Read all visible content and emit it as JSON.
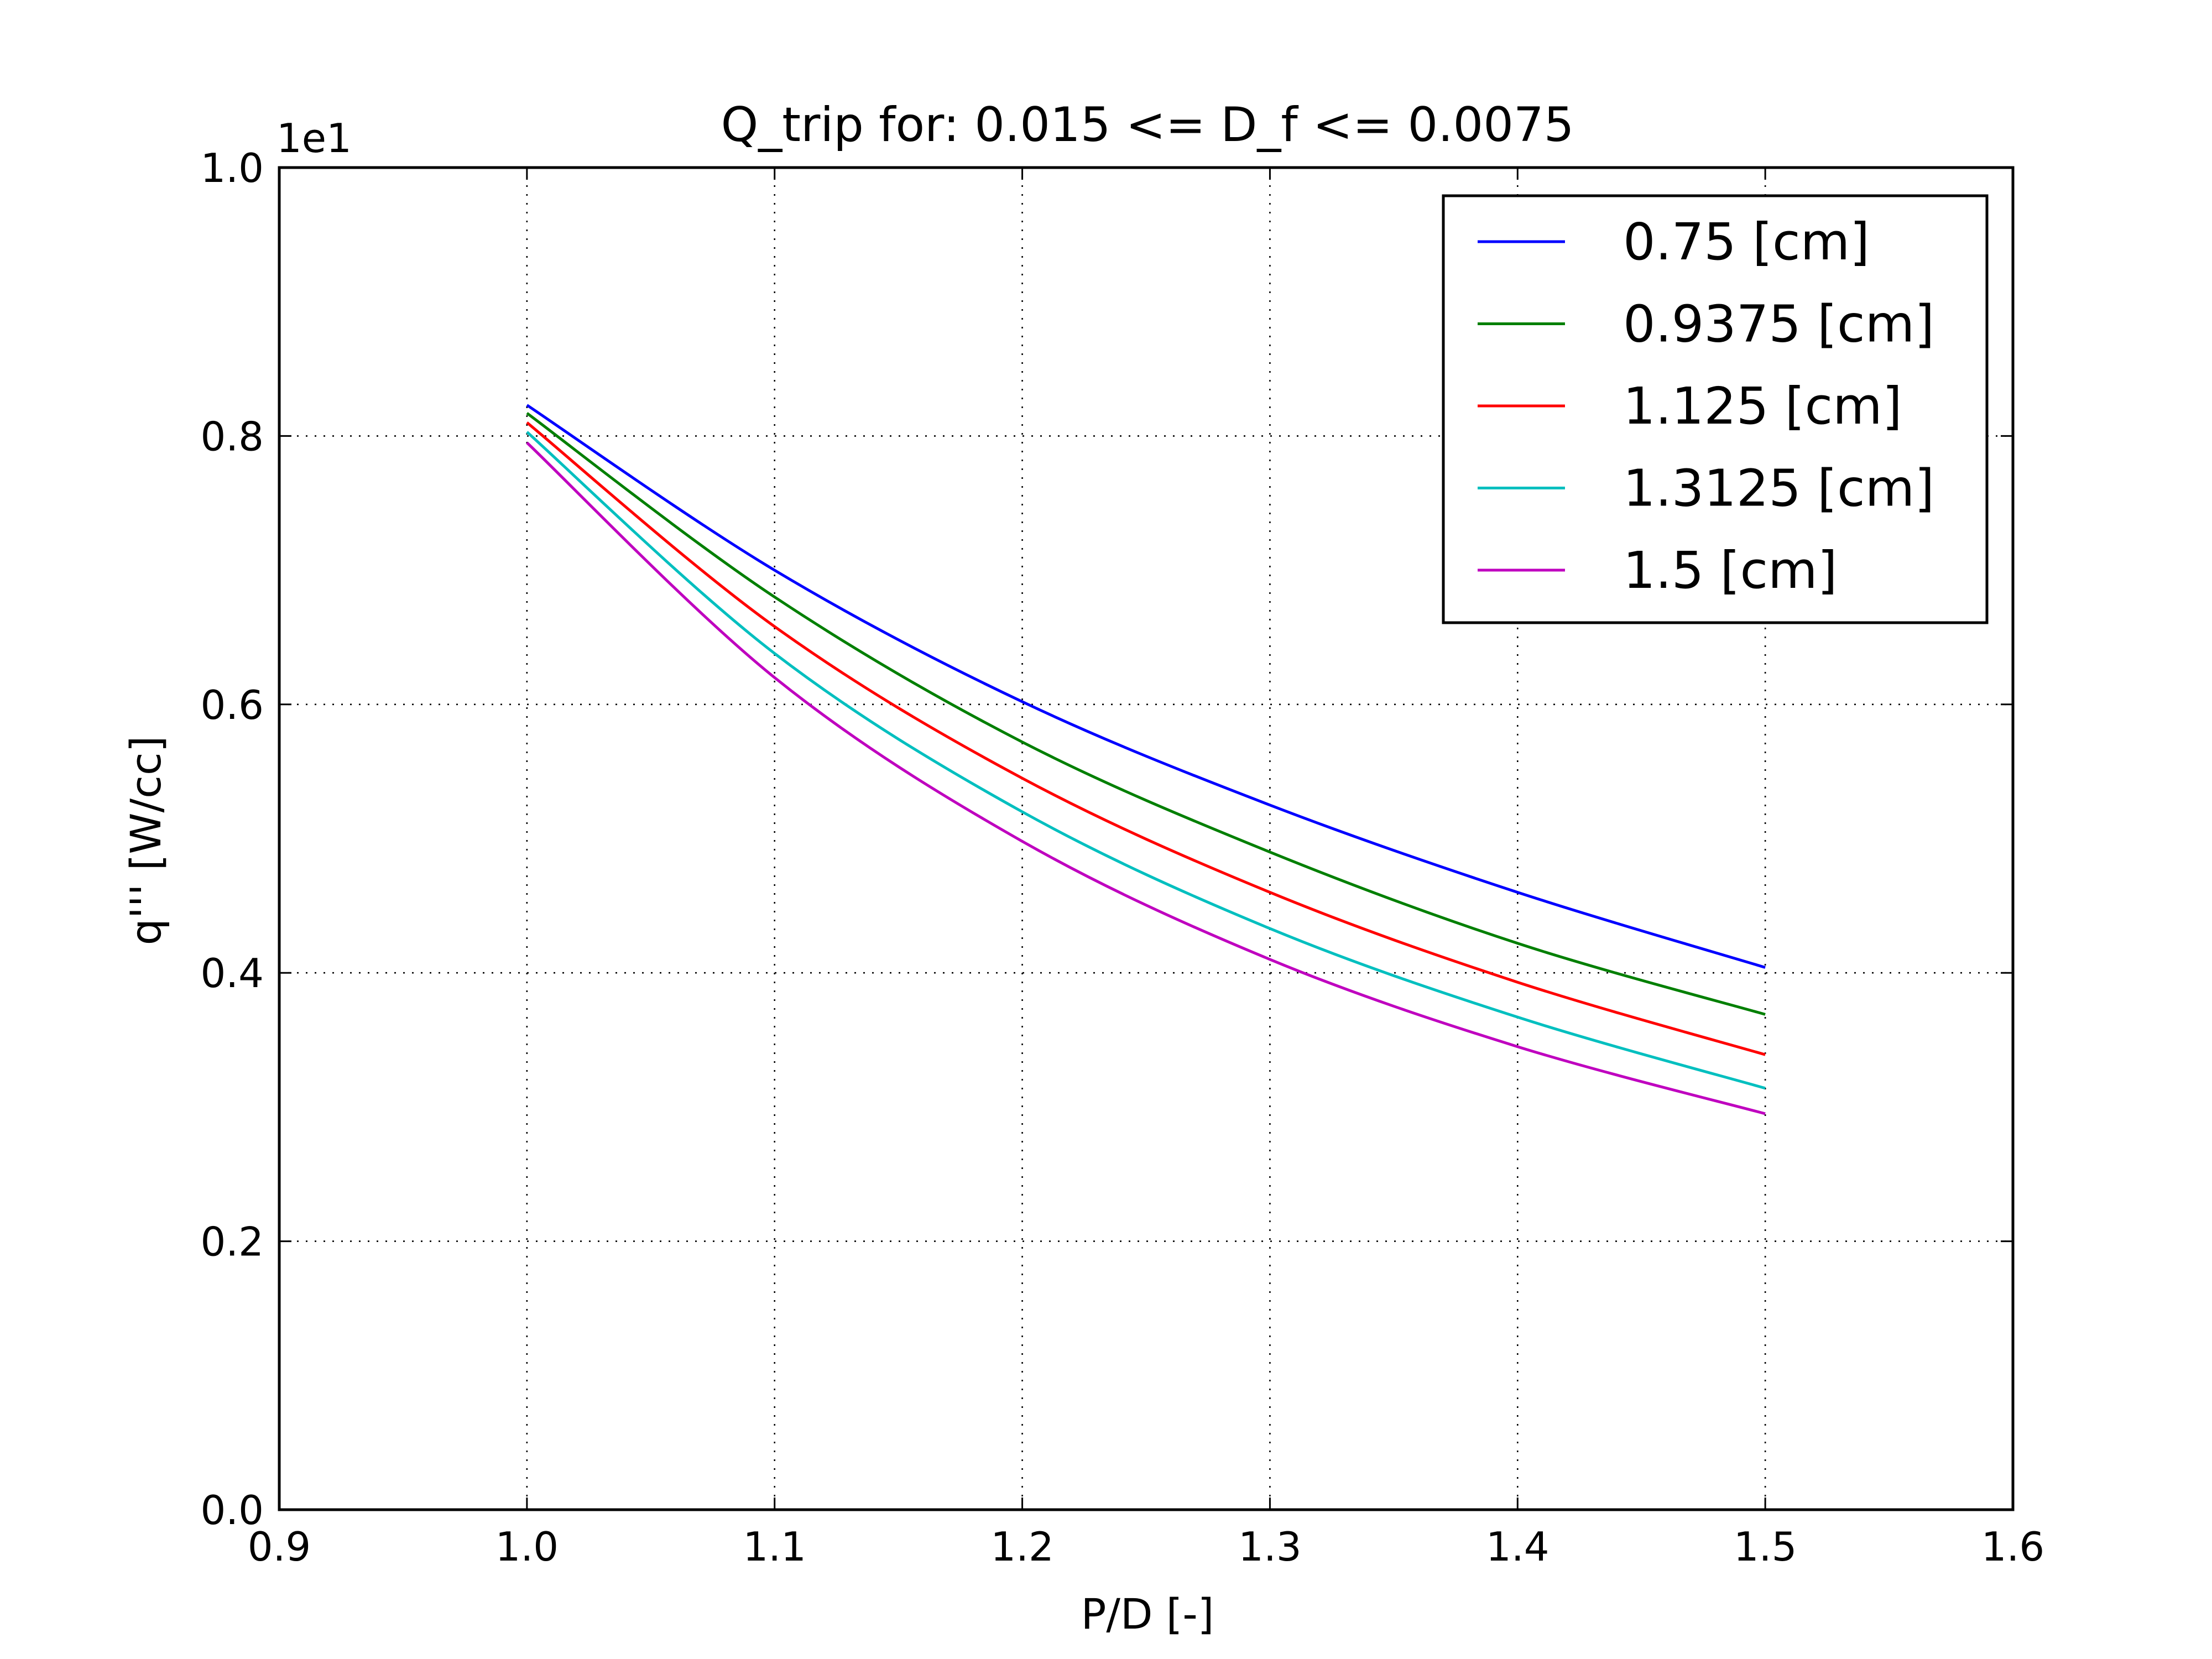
{
  "chart_data": {
    "type": "line",
    "title": "Q_trip for: 0.015 <= D_f <= 0.0075",
    "xlabel": "P/D [-]",
    "ylabel": "q''' [W/cc]",
    "y_offset_label": "1e1",
    "xlim": [
      0.9,
      1.6
    ],
    "ylim": [
      0.0,
      1.0
    ],
    "xticks": [
      "0.9",
      "1.0",
      "1.1",
      "1.2",
      "1.3",
      "1.4",
      "1.5",
      "1.6"
    ],
    "yticks": [
      "0.0",
      "0.2",
      "0.4",
      "0.6",
      "0.8",
      "1.0"
    ],
    "grid": true,
    "legend_position": "top-right",
    "x": [
      1.0,
      1.1,
      1.2,
      1.3,
      1.4,
      1.5
    ],
    "series": [
      {
        "name": "0.75 [cm]",
        "color": "#0000ff",
        "values": [
          0.823,
          0.7,
          0.602,
          0.525,
          0.46,
          0.404
        ]
      },
      {
        "name": "0.9375 [cm]",
        "color": "#007f00",
        "values": [
          0.817,
          0.68,
          0.572,
          0.49,
          0.422,
          0.369
        ]
      },
      {
        "name": "1.125 [cm]",
        "color": "#ff0000",
        "values": [
          0.81,
          0.658,
          0.545,
          0.46,
          0.393,
          0.339
        ]
      },
      {
        "name": "1.3125 [cm]",
        "color": "#00bfbf",
        "values": [
          0.803,
          0.638,
          0.52,
          0.433,
          0.367,
          0.314
        ]
      },
      {
        "name": "1.5 [cm]",
        "color": "#bf00bf",
        "values": [
          0.795,
          0.62,
          0.498,
          0.41,
          0.345,
          0.295
        ]
      }
    ]
  }
}
